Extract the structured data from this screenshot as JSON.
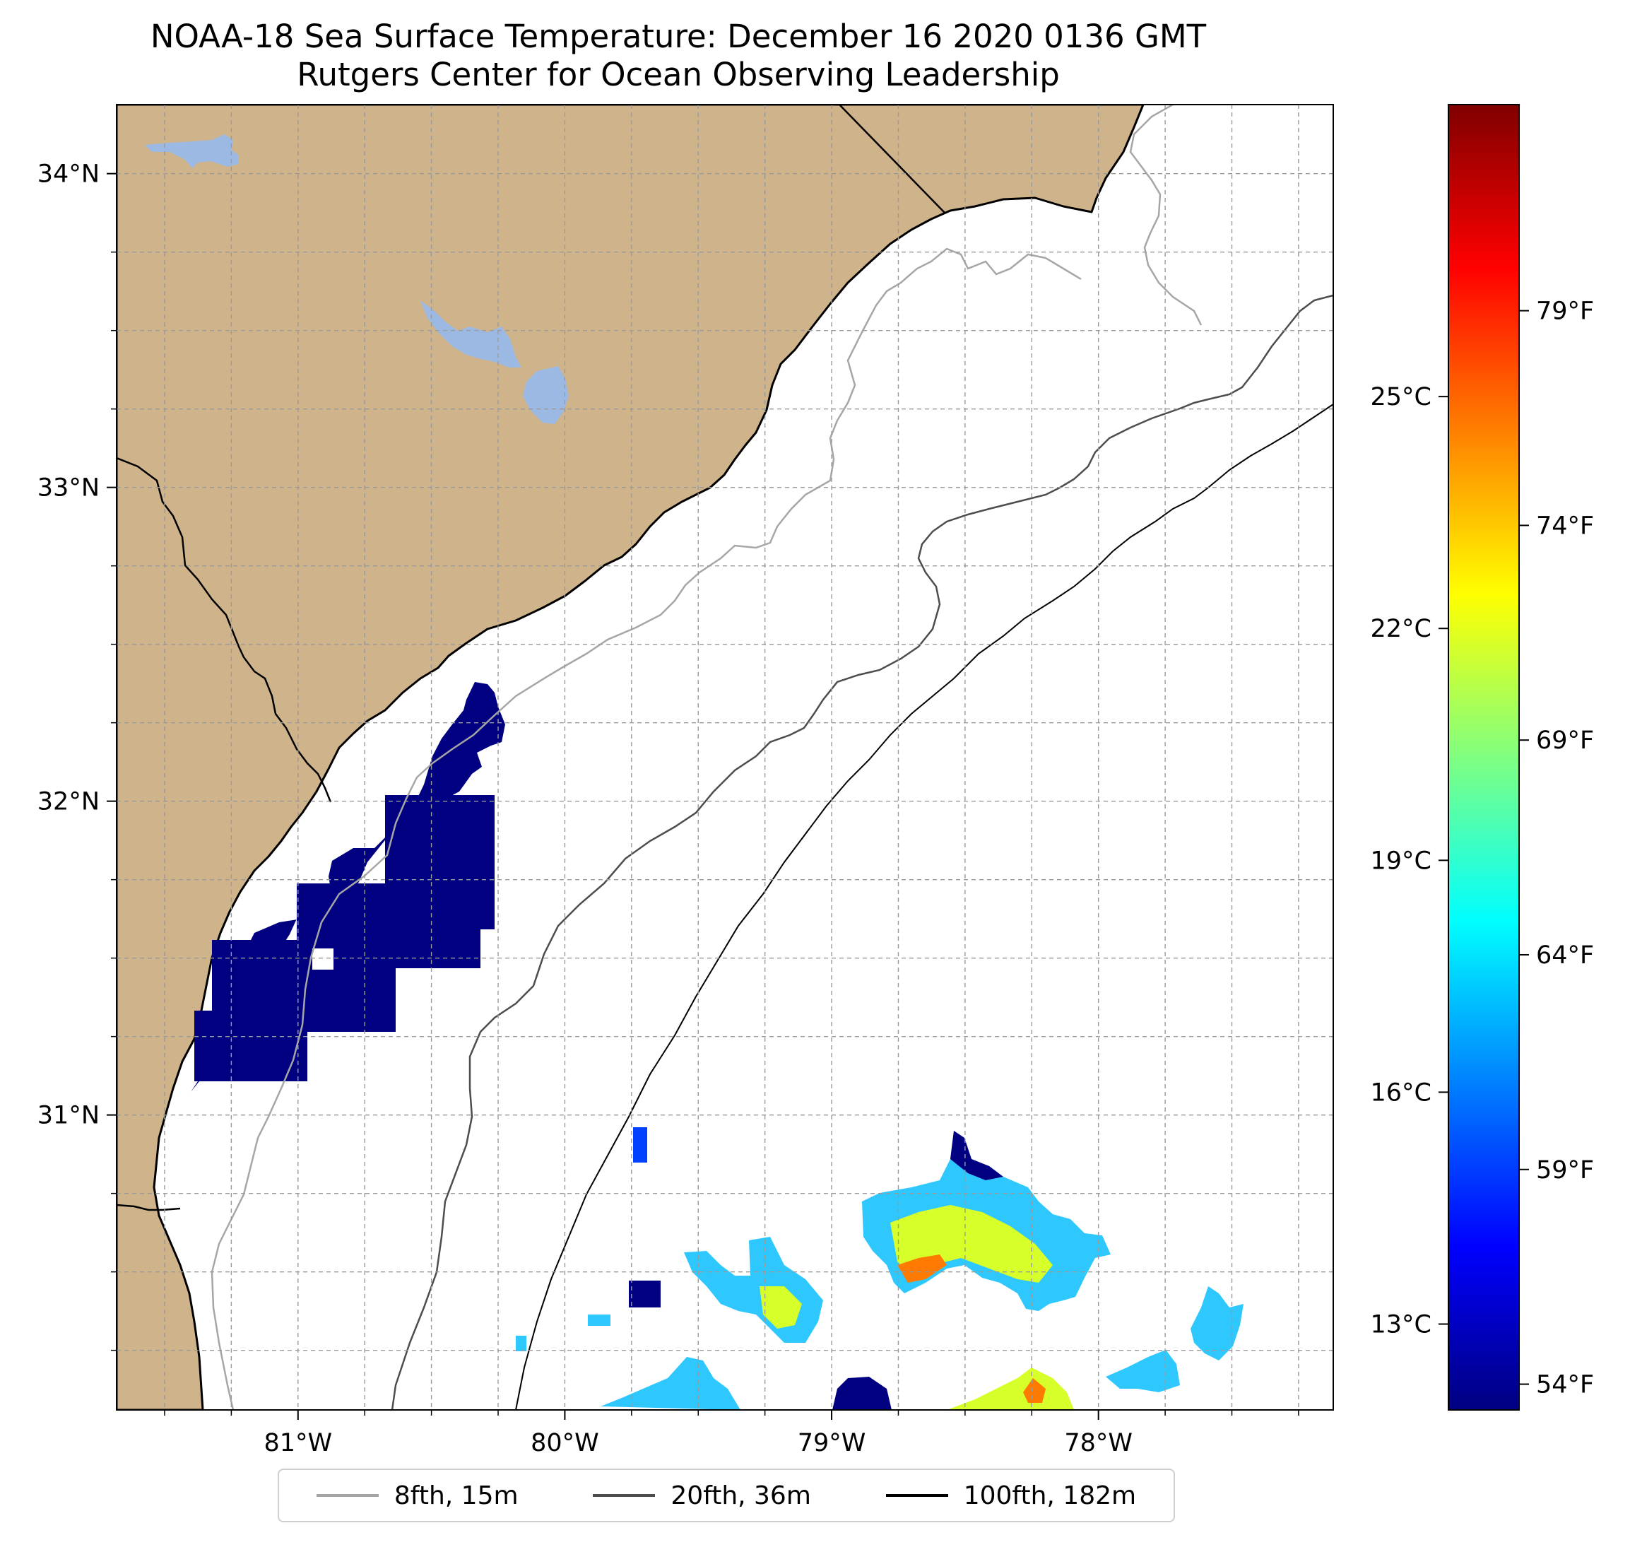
{
  "title": {
    "line1": "NOAA-18 Sea Surface Temperature: December 16 2020 0136 GMT",
    "line2": "Rutgers Center for Ocean Observing Leadership"
  },
  "map": {
    "lon_range": [
      -81.68,
      -77.12
    ],
    "lat_range": [
      30.06,
      34.22
    ],
    "lon_ticks": [
      {
        "value": -81,
        "label": "81°W"
      },
      {
        "value": -80,
        "label": "80°W"
      },
      {
        "value": -79,
        "label": "79°W"
      },
      {
        "value": -78,
        "label": "78°W"
      }
    ],
    "lat_ticks": [
      {
        "value": 34,
        "label": "34°N"
      },
      {
        "value": 33,
        "label": "33°N"
      },
      {
        "value": 32,
        "label": "32°N"
      },
      {
        "value": 31,
        "label": "31°N"
      }
    ],
    "minor_lon_ticks": [
      -81.5,
      -81.25,
      -80.75,
      -80.5,
      -80.25,
      -79.75,
      -79.5,
      -79.25,
      -78.75,
      -78.5,
      -78.25,
      -77.75,
      -77.5,
      -77.25
    ],
    "minor_lat_ticks": [
      30.25,
      30.5,
      30.75,
      31.25,
      31.5,
      31.75,
      32.25,
      32.5,
      32.75,
      33.25,
      33.5,
      33.75
    ],
    "gridlines": true,
    "land_color": "#cfb38b",
    "water_color": "#9cb9e3",
    "coast_color": "#000000"
  },
  "colorbar": {
    "cmap": "jet",
    "colors": [
      "#800000",
      "#ff0000",
      "#ff8000",
      "#ffff00",
      "#80ff80",
      "#00ffff",
      "#0080ff",
      "#0000ff",
      "#000080"
    ],
    "celsius_ticks": [
      {
        "value": 25,
        "label": "25°C"
      },
      {
        "value": 22,
        "label": "22°C"
      },
      {
        "value": 19,
        "label": "19°C"
      },
      {
        "value": 16,
        "label": "16°C"
      },
      {
        "value": 13,
        "label": "13°C"
      }
    ],
    "fahrenheit_ticks": [
      {
        "value": 79,
        "label": "79°F"
      },
      {
        "value": 74,
        "label": "74°F"
      },
      {
        "value": 69,
        "label": "69°F"
      },
      {
        "value": 64,
        "label": "64°F"
      },
      {
        "value": 59,
        "label": "59°F"
      },
      {
        "value": 54,
        "label": "54°F"
      }
    ]
  },
  "legend": {
    "items": [
      {
        "label": "8fth, 15m",
        "color": "#a6a6a6"
      },
      {
        "label": "20fth, 36m",
        "color": "#4d4d4d"
      },
      {
        "label": "100fth, 182m",
        "color": "#000000"
      }
    ]
  }
}
